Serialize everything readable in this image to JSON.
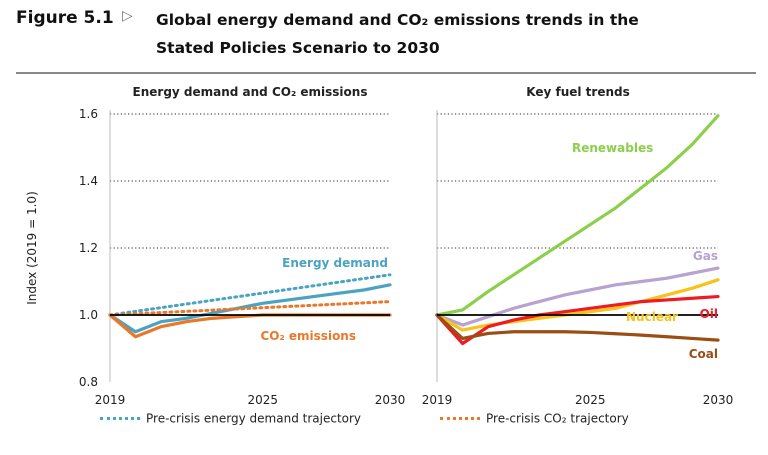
{
  "header": {
    "figure_label": "Figure 5.1",
    "title_line1": "Global energy demand and CO₂ emissions trends in the",
    "title_line2": "Stated Policies Scenario to 2030"
  },
  "colors": {
    "energy_demand": "#4ba3c3",
    "co2": "#e8782a",
    "renewables": "#8ccf4d",
    "gas": "#b7a2d1",
    "nuclear": "#f8c21c",
    "oil": "#ec1c24",
    "coal": "#9a4e14",
    "baseline": "#000000",
    "grid": "#555555"
  },
  "legend": {
    "pre_demand": "Pre-crisis energy demand trajectory",
    "pre_co2": "Pre-crisis CO₂ trajectory"
  },
  "chart_data": [
    {
      "type": "line",
      "title": "Energy demand and CO₂ emissions",
      "ylabel": "Index (2019 = 1.0)",
      "ylim": [
        0.8,
        1.6
      ],
      "yticks": [
        "0.8",
        "1.0",
        "1.2",
        "1.4",
        "1.6"
      ],
      "xticks": [
        "2019",
        "2025",
        "2030"
      ],
      "grid": "dotted horizontal",
      "series": [
        {
          "name": "Energy demand",
          "style": "solid",
          "color_key": "energy_demand",
          "x": [
            2019,
            2020,
            2021,
            2022,
            2023,
            2024,
            2025,
            2026,
            2027,
            2028,
            2029,
            2030
          ],
          "values": [
            1.0,
            0.95,
            0.98,
            0.99,
            1.005,
            1.02,
            1.035,
            1.045,
            1.055,
            1.065,
            1.075,
            1.09
          ]
        },
        {
          "name": "CO₂ emissions",
          "style": "solid",
          "color_key": "co2",
          "x": [
            2019,
            2020,
            2021,
            2022,
            2023,
            2024,
            2025,
            2026,
            2027,
            2028,
            2029,
            2030
          ],
          "values": [
            1.0,
            0.935,
            0.965,
            0.98,
            0.99,
            0.995,
            1.0,
            1.0,
            1.0,
            1.0,
            1.0,
            1.0
          ]
        },
        {
          "name": "Pre-crisis energy demand trajectory",
          "style": "dotted",
          "color_key": "energy_demand",
          "x": [
            2019,
            2030
          ],
          "values": [
            1.0,
            1.12
          ]
        },
        {
          "name": "Pre-crisis CO₂ trajectory",
          "style": "dotted",
          "color_key": "co2",
          "x": [
            2019,
            2030
          ],
          "values": [
            1.0,
            1.04
          ]
        }
      ],
      "annotations": [
        "Energy demand",
        "CO₂ emissions"
      ]
    },
    {
      "type": "line",
      "title": "Key fuel trends",
      "ylim": [
        0.8,
        1.6
      ],
      "xticks": [
        "2019",
        "2025",
        "2030"
      ],
      "grid": "dotted horizontal",
      "series": [
        {
          "name": "Renewables",
          "color_key": "renewables",
          "x": [
            2019,
            2020,
            2021,
            2022,
            2023,
            2024,
            2025,
            2026,
            2027,
            2028,
            2029,
            2030
          ],
          "values": [
            1.0,
            1.015,
            1.07,
            1.12,
            1.17,
            1.22,
            1.27,
            1.32,
            1.38,
            1.44,
            1.51,
            1.595
          ]
        },
        {
          "name": "Gas",
          "color_key": "gas",
          "x": [
            2019,
            2020,
            2021,
            2022,
            2023,
            2024,
            2025,
            2026,
            2027,
            2028,
            2029,
            2030
          ],
          "values": [
            1.0,
            0.97,
            0.995,
            1.02,
            1.04,
            1.06,
            1.075,
            1.09,
            1.1,
            1.11,
            1.125,
            1.14
          ]
        },
        {
          "name": "Nuclear",
          "color_key": "nuclear",
          "x": [
            2019,
            2020,
            2021,
            2022,
            2023,
            2024,
            2025,
            2026,
            2027,
            2028,
            2029,
            2030
          ],
          "values": [
            1.0,
            0.955,
            0.97,
            0.98,
            0.99,
            1.0,
            1.01,
            1.02,
            1.04,
            1.06,
            1.08,
            1.105
          ]
        },
        {
          "name": "Oil",
          "color_key": "oil",
          "x": [
            2019,
            2020,
            2021,
            2022,
            2023,
            2024,
            2025,
            2026,
            2027,
            2028,
            2029,
            2030
          ],
          "values": [
            1.0,
            0.915,
            0.965,
            0.985,
            1.0,
            1.01,
            1.02,
            1.03,
            1.04,
            1.045,
            1.05,
            1.055
          ]
        },
        {
          "name": "Coal",
          "color_key": "coal",
          "x": [
            2019,
            2020,
            2021,
            2022,
            2023,
            2024,
            2025,
            2026,
            2027,
            2028,
            2029,
            2030
          ],
          "values": [
            1.0,
            0.93,
            0.945,
            0.95,
            0.95,
            0.95,
            0.948,
            0.944,
            0.94,
            0.935,
            0.93,
            0.925
          ]
        }
      ],
      "annotations": [
        "Renewables",
        "Gas",
        "Nuclear",
        "Oil",
        "Coal"
      ]
    }
  ]
}
